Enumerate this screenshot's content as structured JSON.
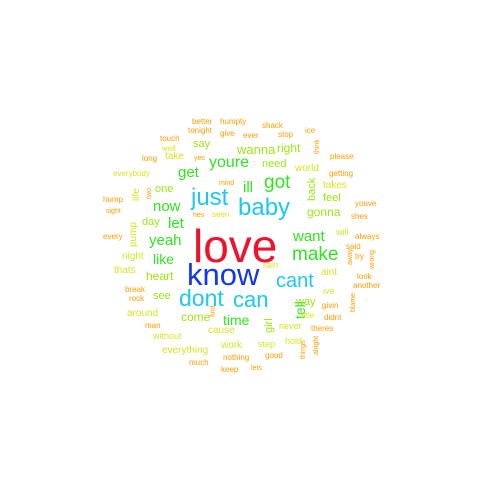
{
  "palette": {
    "red": "#f0122c",
    "blue": "#1337ee",
    "cyan": "#1ec9ec",
    "green": "#2fe51f",
    "lime": "#9fe516",
    "yellow": "#d7e524",
    "orange": "#ff9d00",
    "dark_orange": "#e8620e"
  },
  "words": [
    {
      "text": "love",
      "color": "red"
    },
    {
      "text": "know",
      "color": "blue"
    },
    {
      "text": "baby",
      "color": "cyan"
    },
    {
      "text": "just",
      "color": "cyan"
    },
    {
      "text": "dont",
      "color": "cyan"
    },
    {
      "text": "can",
      "color": "cyan"
    },
    {
      "text": "cant",
      "color": "cyan"
    },
    {
      "text": "make",
      "color": "green"
    },
    {
      "text": "got",
      "color": "green"
    },
    {
      "text": "youre",
      "color": "green"
    },
    {
      "text": "want",
      "color": "green"
    },
    {
      "text": "now",
      "color": "green"
    },
    {
      "text": "yeah",
      "color": "green"
    },
    {
      "text": "get",
      "color": "green"
    },
    {
      "text": "let",
      "color": "green"
    },
    {
      "text": "ill",
      "color": "green"
    },
    {
      "text": "like",
      "color": "green"
    },
    {
      "text": "time",
      "color": "green"
    },
    {
      "text": "tell",
      "color": "green"
    },
    {
      "text": "wanna",
      "color": "lime"
    },
    {
      "text": "gonna",
      "color": "lime"
    },
    {
      "text": "heart",
      "color": "lime"
    },
    {
      "text": "come",
      "color": "lime"
    },
    {
      "text": "right",
      "color": "lime"
    },
    {
      "text": "say",
      "color": "lime"
    },
    {
      "text": "one",
      "color": "lime"
    },
    {
      "text": "day",
      "color": "lime"
    },
    {
      "text": "need",
      "color": "lime"
    },
    {
      "text": "back",
      "color": "lime"
    },
    {
      "text": "feel",
      "color": "lime"
    },
    {
      "text": "see",
      "color": "lime"
    },
    {
      "text": "way",
      "color": "lime"
    },
    {
      "text": "girl",
      "color": "lime"
    },
    {
      "text": "take",
      "color": "yellow"
    },
    {
      "text": "world",
      "color": "yellow"
    },
    {
      "text": "takes",
      "color": "yellow"
    },
    {
      "text": "pump",
      "color": "yellow"
    },
    {
      "text": "life",
      "color": "yellow"
    },
    {
      "text": "night",
      "color": "yellow"
    },
    {
      "text": "thats",
      "color": "yellow"
    },
    {
      "text": "rain",
      "color": "yellow"
    },
    {
      "text": "aint",
      "color": "yellow"
    },
    {
      "text": "will",
      "color": "yellow"
    },
    {
      "text": "ive",
      "color": "yellow"
    },
    {
      "text": "around",
      "color": "yellow"
    },
    {
      "text": "cause",
      "color": "yellow"
    },
    {
      "text": "work",
      "color": "yellow"
    },
    {
      "text": "everything",
      "color": "yellow"
    },
    {
      "text": "without",
      "color": "yellow"
    },
    {
      "text": "seen",
      "color": "yellow"
    },
    {
      "text": "step",
      "color": "yellow"
    },
    {
      "text": "never",
      "color": "yellow"
    },
    {
      "text": "hold",
      "color": "yellow"
    },
    {
      "text": "little",
      "color": "yellow"
    },
    {
      "text": "everybody",
      "color": "yellow"
    },
    {
      "text": "well",
      "color": "yellow"
    },
    {
      "text": "long",
      "color": "orange"
    },
    {
      "text": "yes",
      "color": "orange"
    },
    {
      "text": "touch",
      "color": "orange"
    },
    {
      "text": "tonight",
      "color": "orange"
    },
    {
      "text": "give",
      "color": "orange"
    },
    {
      "text": "ever",
      "color": "orange"
    },
    {
      "text": "better",
      "color": "orange"
    },
    {
      "text": "humpty",
      "color": "orange"
    },
    {
      "text": "shack",
      "color": "orange"
    },
    {
      "text": "stop",
      "color": "orange"
    },
    {
      "text": "ice",
      "color": "orange"
    },
    {
      "text": "think",
      "color": "orange"
    },
    {
      "text": "please",
      "color": "orange"
    },
    {
      "text": "getting",
      "color": "orange"
    },
    {
      "text": "mind",
      "color": "orange"
    },
    {
      "text": "hump",
      "color": "orange"
    },
    {
      "text": "sight",
      "color": "orange"
    },
    {
      "text": "two",
      "color": "orange"
    },
    {
      "text": "hes",
      "color": "orange"
    },
    {
      "text": "every",
      "color": "orange"
    },
    {
      "text": "youve",
      "color": "orange"
    },
    {
      "text": "shes",
      "color": "orange"
    },
    {
      "text": "always",
      "color": "orange"
    },
    {
      "text": "said",
      "color": "orange"
    },
    {
      "text": "try",
      "color": "orange"
    },
    {
      "text": "wrong",
      "color": "orange"
    },
    {
      "text": "away",
      "color": "orange"
    },
    {
      "text": "look",
      "color": "orange"
    },
    {
      "text": "another",
      "color": "orange"
    },
    {
      "text": "break",
      "color": "orange"
    },
    {
      "text": "rock",
      "color": "orange"
    },
    {
      "text": "givin",
      "color": "orange"
    },
    {
      "text": "didnt",
      "color": "orange"
    },
    {
      "text": "blame",
      "color": "orange"
    },
    {
      "text": "man",
      "color": "orange"
    },
    {
      "text": "find",
      "color": "orange"
    },
    {
      "text": "theres",
      "color": "orange"
    },
    {
      "text": "things",
      "color": "orange"
    },
    {
      "text": "alright",
      "color": "orange"
    },
    {
      "text": "much",
      "color": "orange"
    },
    {
      "text": "nothing",
      "color": "orange"
    },
    {
      "text": "good",
      "color": "orange"
    },
    {
      "text": "keep",
      "color": "orange"
    },
    {
      "text": "lets",
      "color": "orange"
    }
  ]
}
